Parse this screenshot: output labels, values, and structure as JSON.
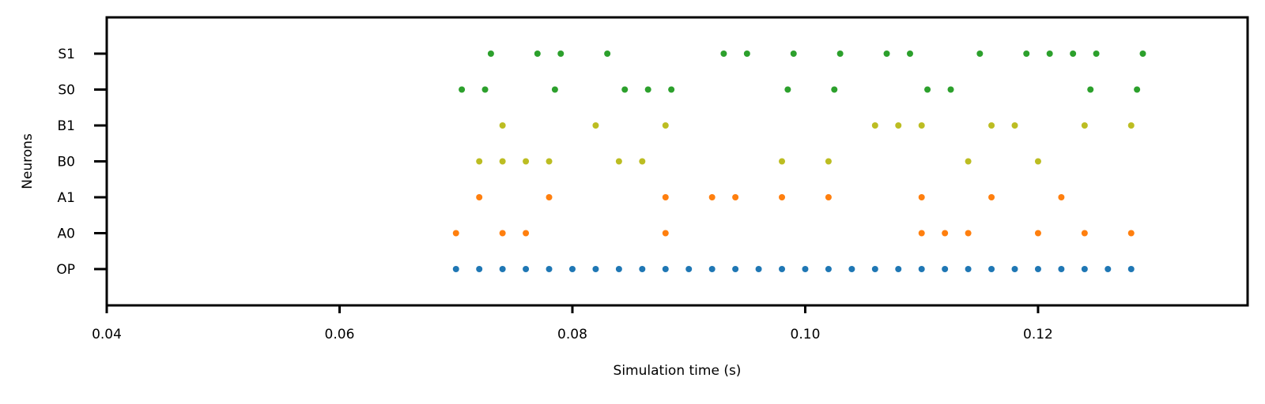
{
  "chart_data": {
    "type": "scatter",
    "title": "",
    "xlabel": "Simulation time (s)",
    "ylabel": "Neurons",
    "xlim": [
      0.04,
      0.138
    ],
    "xticks": [
      0.04,
      0.06,
      0.08,
      0.1,
      0.12
    ],
    "xtick_labels": [
      "0.04",
      "0.06",
      "0.08",
      "0.10",
      "0.12"
    ],
    "categories": [
      "OP",
      "A0",
      "A1",
      "B0",
      "B1",
      "S0",
      "S1"
    ],
    "grid": false,
    "colors": {
      "OP": "#1f77b4",
      "A0": "#ff7f0e",
      "A1": "#ff7f0e",
      "B0": "#bcbd22",
      "B1": "#bcbd22",
      "S0": "#2ca02c",
      "S1": "#2ca02c"
    },
    "series": [
      {
        "category": "OP",
        "x": [
          0.07,
          0.072,
          0.074,
          0.076,
          0.078,
          0.08,
          0.082,
          0.084,
          0.086,
          0.088,
          0.09,
          0.092,
          0.094,
          0.096,
          0.098,
          0.1,
          0.102,
          0.104,
          0.106,
          0.108,
          0.11,
          0.112,
          0.114,
          0.116,
          0.118,
          0.12,
          0.122,
          0.124,
          0.126,
          0.128
        ]
      },
      {
        "category": "A0",
        "x": [
          0.07,
          0.074,
          0.076,
          0.088,
          0.11,
          0.112,
          0.114,
          0.12,
          0.124,
          0.128
        ]
      },
      {
        "category": "A1",
        "x": [
          0.072,
          0.078,
          0.088,
          0.092,
          0.094,
          0.098,
          0.102,
          0.11,
          0.116,
          0.122
        ]
      },
      {
        "category": "B0",
        "x": [
          0.072,
          0.074,
          0.076,
          0.078,
          0.084,
          0.086,
          0.098,
          0.102,
          0.114,
          0.12
        ]
      },
      {
        "category": "B1",
        "x": [
          0.074,
          0.082,
          0.088,
          0.106,
          0.108,
          0.11,
          0.116,
          0.118,
          0.124,
          0.128
        ]
      },
      {
        "category": "S0",
        "x": [
          0.0705,
          0.0725,
          0.0785,
          0.0845,
          0.0865,
          0.0885,
          0.0985,
          0.1025,
          0.1105,
          0.1125,
          0.1245,
          0.1285
        ]
      },
      {
        "category": "S1",
        "x": [
          0.073,
          0.077,
          0.079,
          0.083,
          0.093,
          0.095,
          0.099,
          0.103,
          0.107,
          0.109,
          0.115,
          0.119,
          0.121,
          0.123,
          0.125,
          0.129
        ]
      }
    ]
  }
}
